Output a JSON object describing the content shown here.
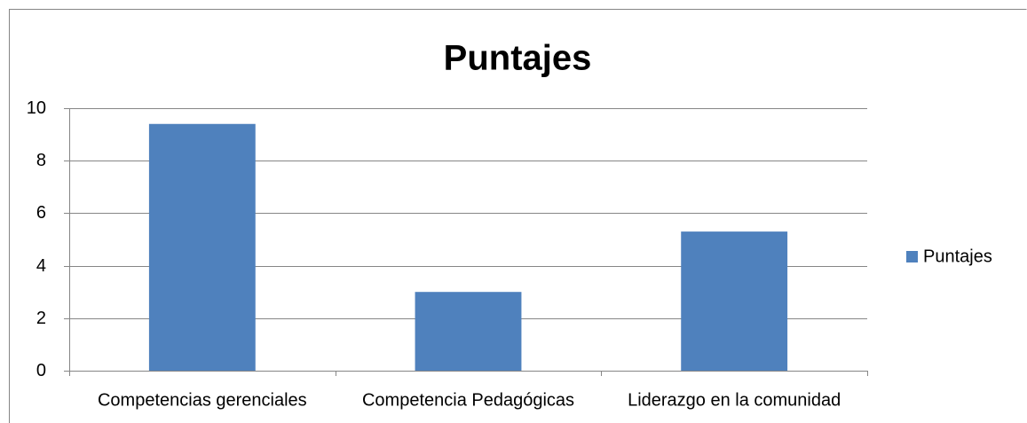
{
  "chart_data": {
    "type": "bar",
    "title": "Puntajes",
    "categories": [
      "Competencias gerenciales",
      "Competencia Pedagógicas",
      "Liderazgo en la comunidad"
    ],
    "series": [
      {
        "name": "Puntajes",
        "color": "#4f81bd",
        "values": [
          9.4,
          3.0,
          5.3
        ]
      }
    ],
    "ylim": [
      0,
      10
    ],
    "yticks": [
      0,
      2,
      4,
      6,
      8,
      10
    ],
    "grid": true,
    "legend": "right"
  }
}
